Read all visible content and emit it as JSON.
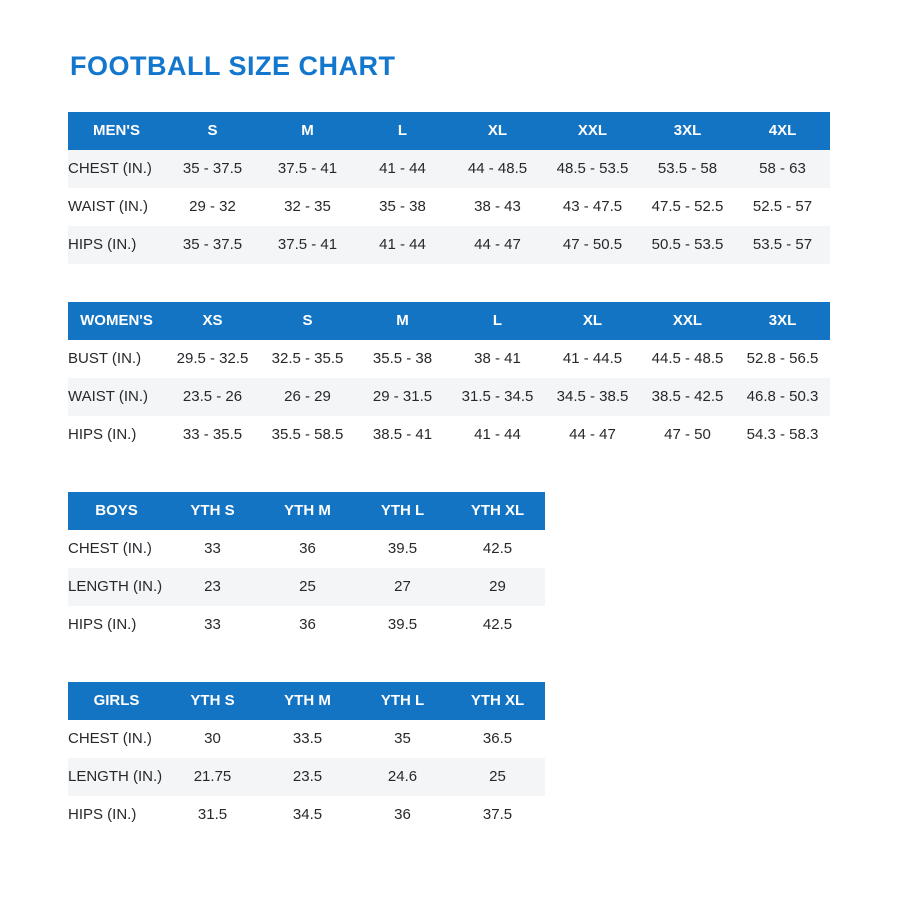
{
  "page": {
    "title": "FOOTBALL SIZE CHART"
  },
  "colors": {
    "title_blue": "#1377CE",
    "header_blue": "#1474C4",
    "stripe_gray": "#F4F5F6",
    "body_text": "#26282B",
    "header_text": "#FFFFFF"
  },
  "tables": [
    {
      "id": "mens",
      "stripe_start": "gray",
      "header": [
        "MEN'S",
        "S",
        "M",
        "L",
        "XL",
        "XXL",
        "3XL",
        "4XL"
      ],
      "rows": [
        {
          "label": "CHEST (IN.)",
          "values": [
            "35 - 37.5",
            "37.5 - 41",
            "41 - 44",
            "44 - 48.5",
            "48.5 - 53.5",
            "53.5 - 58",
            "58 - 63"
          ]
        },
        {
          "label": "WAIST (IN.)",
          "values": [
            "29 - 32",
            "32 - 35",
            "35 - 38",
            "38 - 43",
            "43 - 47.5",
            "47.5 - 52.5",
            "52.5 - 57"
          ]
        },
        {
          "label": "HIPS (IN.)",
          "values": [
            "35 - 37.5",
            "37.5 - 41",
            "41 - 44",
            "44 - 47",
            "47 - 50.5",
            "50.5 - 53.5",
            "53.5 - 57"
          ]
        }
      ]
    },
    {
      "id": "womens",
      "stripe_start": "white",
      "header": [
        "WOMEN'S",
        "XS",
        "S",
        "M",
        "L",
        "XL",
        "XXL",
        "3XL"
      ],
      "rows": [
        {
          "label": "BUST (IN.)",
          "values": [
            "29.5 - 32.5",
            "32.5 - 35.5",
            "35.5 - 38",
            "38 - 41",
            "41 - 44.5",
            "44.5 - 48.5",
            "52.8 - 56.5"
          ]
        },
        {
          "label": "WAIST (IN.)",
          "values": [
            "23.5 - 26",
            "26 - 29",
            "29 - 31.5",
            "31.5 - 34.5",
            "34.5 - 38.5",
            "38.5 - 42.5",
            "46.8 - 50.3"
          ]
        },
        {
          "label": "HIPS (IN.)",
          "values": [
            "33 - 35.5",
            "35.5 - 58.5",
            "38.5 - 41",
            "41 - 44",
            "44 - 47",
            "47 - 50",
            "54.3 - 58.3"
          ]
        }
      ]
    },
    {
      "id": "boys",
      "stripe_start": "white",
      "header": [
        "BOYS",
        "YTH S",
        "YTH M",
        "YTH L",
        "YTH XL"
      ],
      "rows": [
        {
          "label": "CHEST (IN.)",
          "values": [
            "33",
            "36",
            "39.5",
            "42.5"
          ]
        },
        {
          "label": "LENGTH (IN.)",
          "values": [
            "23",
            "25",
            "27",
            "29"
          ]
        },
        {
          "label": "HIPS (IN.)",
          "values": [
            "33",
            "36",
            "39.5",
            "42.5"
          ]
        }
      ]
    },
    {
      "id": "girls",
      "stripe_start": "white",
      "header": [
        "GIRLS",
        "YTH S",
        "YTH M",
        "YTH L",
        "YTH XL"
      ],
      "rows": [
        {
          "label": "CHEST (IN.)",
          "values": [
            "30",
            "33.5",
            "35",
            "36.5"
          ]
        },
        {
          "label": "LENGTH (IN.)",
          "values": [
            "21.75",
            "23.5",
            "24.6",
            "25"
          ]
        },
        {
          "label": "HIPS (IN.)",
          "values": [
            "31.5",
            "34.5",
            "36",
            "37.5"
          ]
        }
      ]
    }
  ]
}
